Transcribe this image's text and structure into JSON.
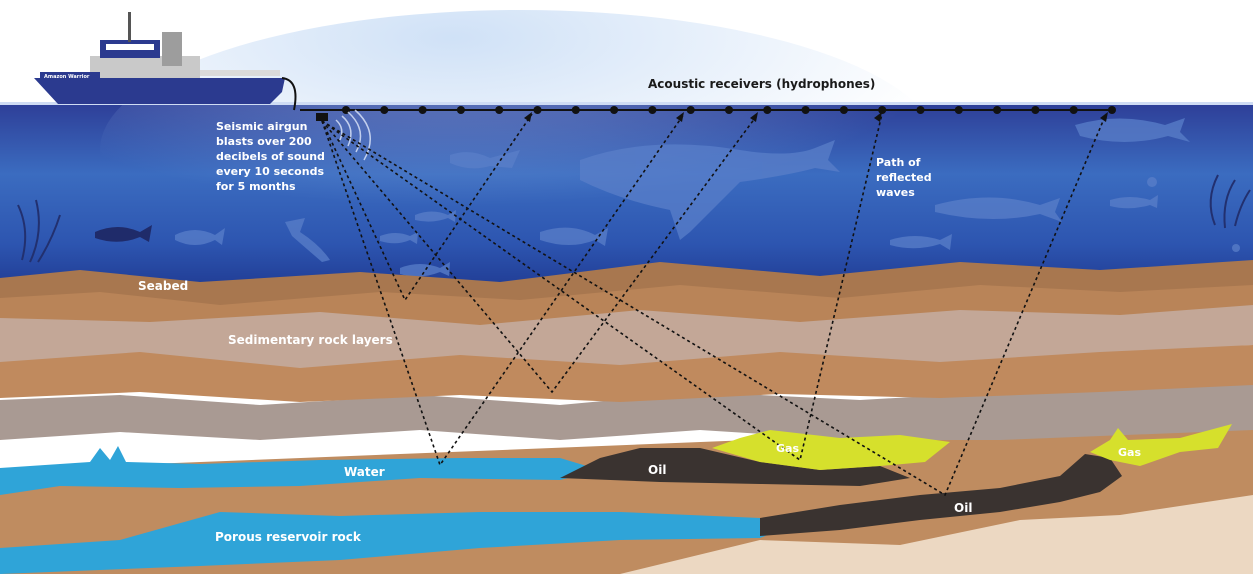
{
  "ship_name": "Amazon Warrior",
  "labels": {
    "receivers": "Acoustic receivers (hydrophones)",
    "airgun_lines": [
      "Seismic airgun",
      "blasts over 200",
      "decibels of sound",
      "every 10 seconds",
      "for 5 months"
    ],
    "reflected_lines": [
      "Path of",
      "reflected",
      "waves"
    ],
    "seabed": "Seabed",
    "sedimentary": "Sedimentary rock layers",
    "water": "Water",
    "oil_left": "Oil",
    "oil_right": "Oil",
    "gas_left": "Gas",
    "gas_right": "Gas",
    "reservoir": "Porous reservoir rock"
  },
  "colors": {
    "ocean_top": "#2f3f9c",
    "ocean_mid": "#3a6fc0",
    "ocean_bottom": "#1d3a8a",
    "sand": "#c08a5e",
    "sand_light": "#c9a48a",
    "rock_gray": "#a89890",
    "water_blue": "#2fa4d8",
    "oil": "#3a3330",
    "gas": "#d6e02c",
    "ship_hull": "#2b3a8f"
  }
}
